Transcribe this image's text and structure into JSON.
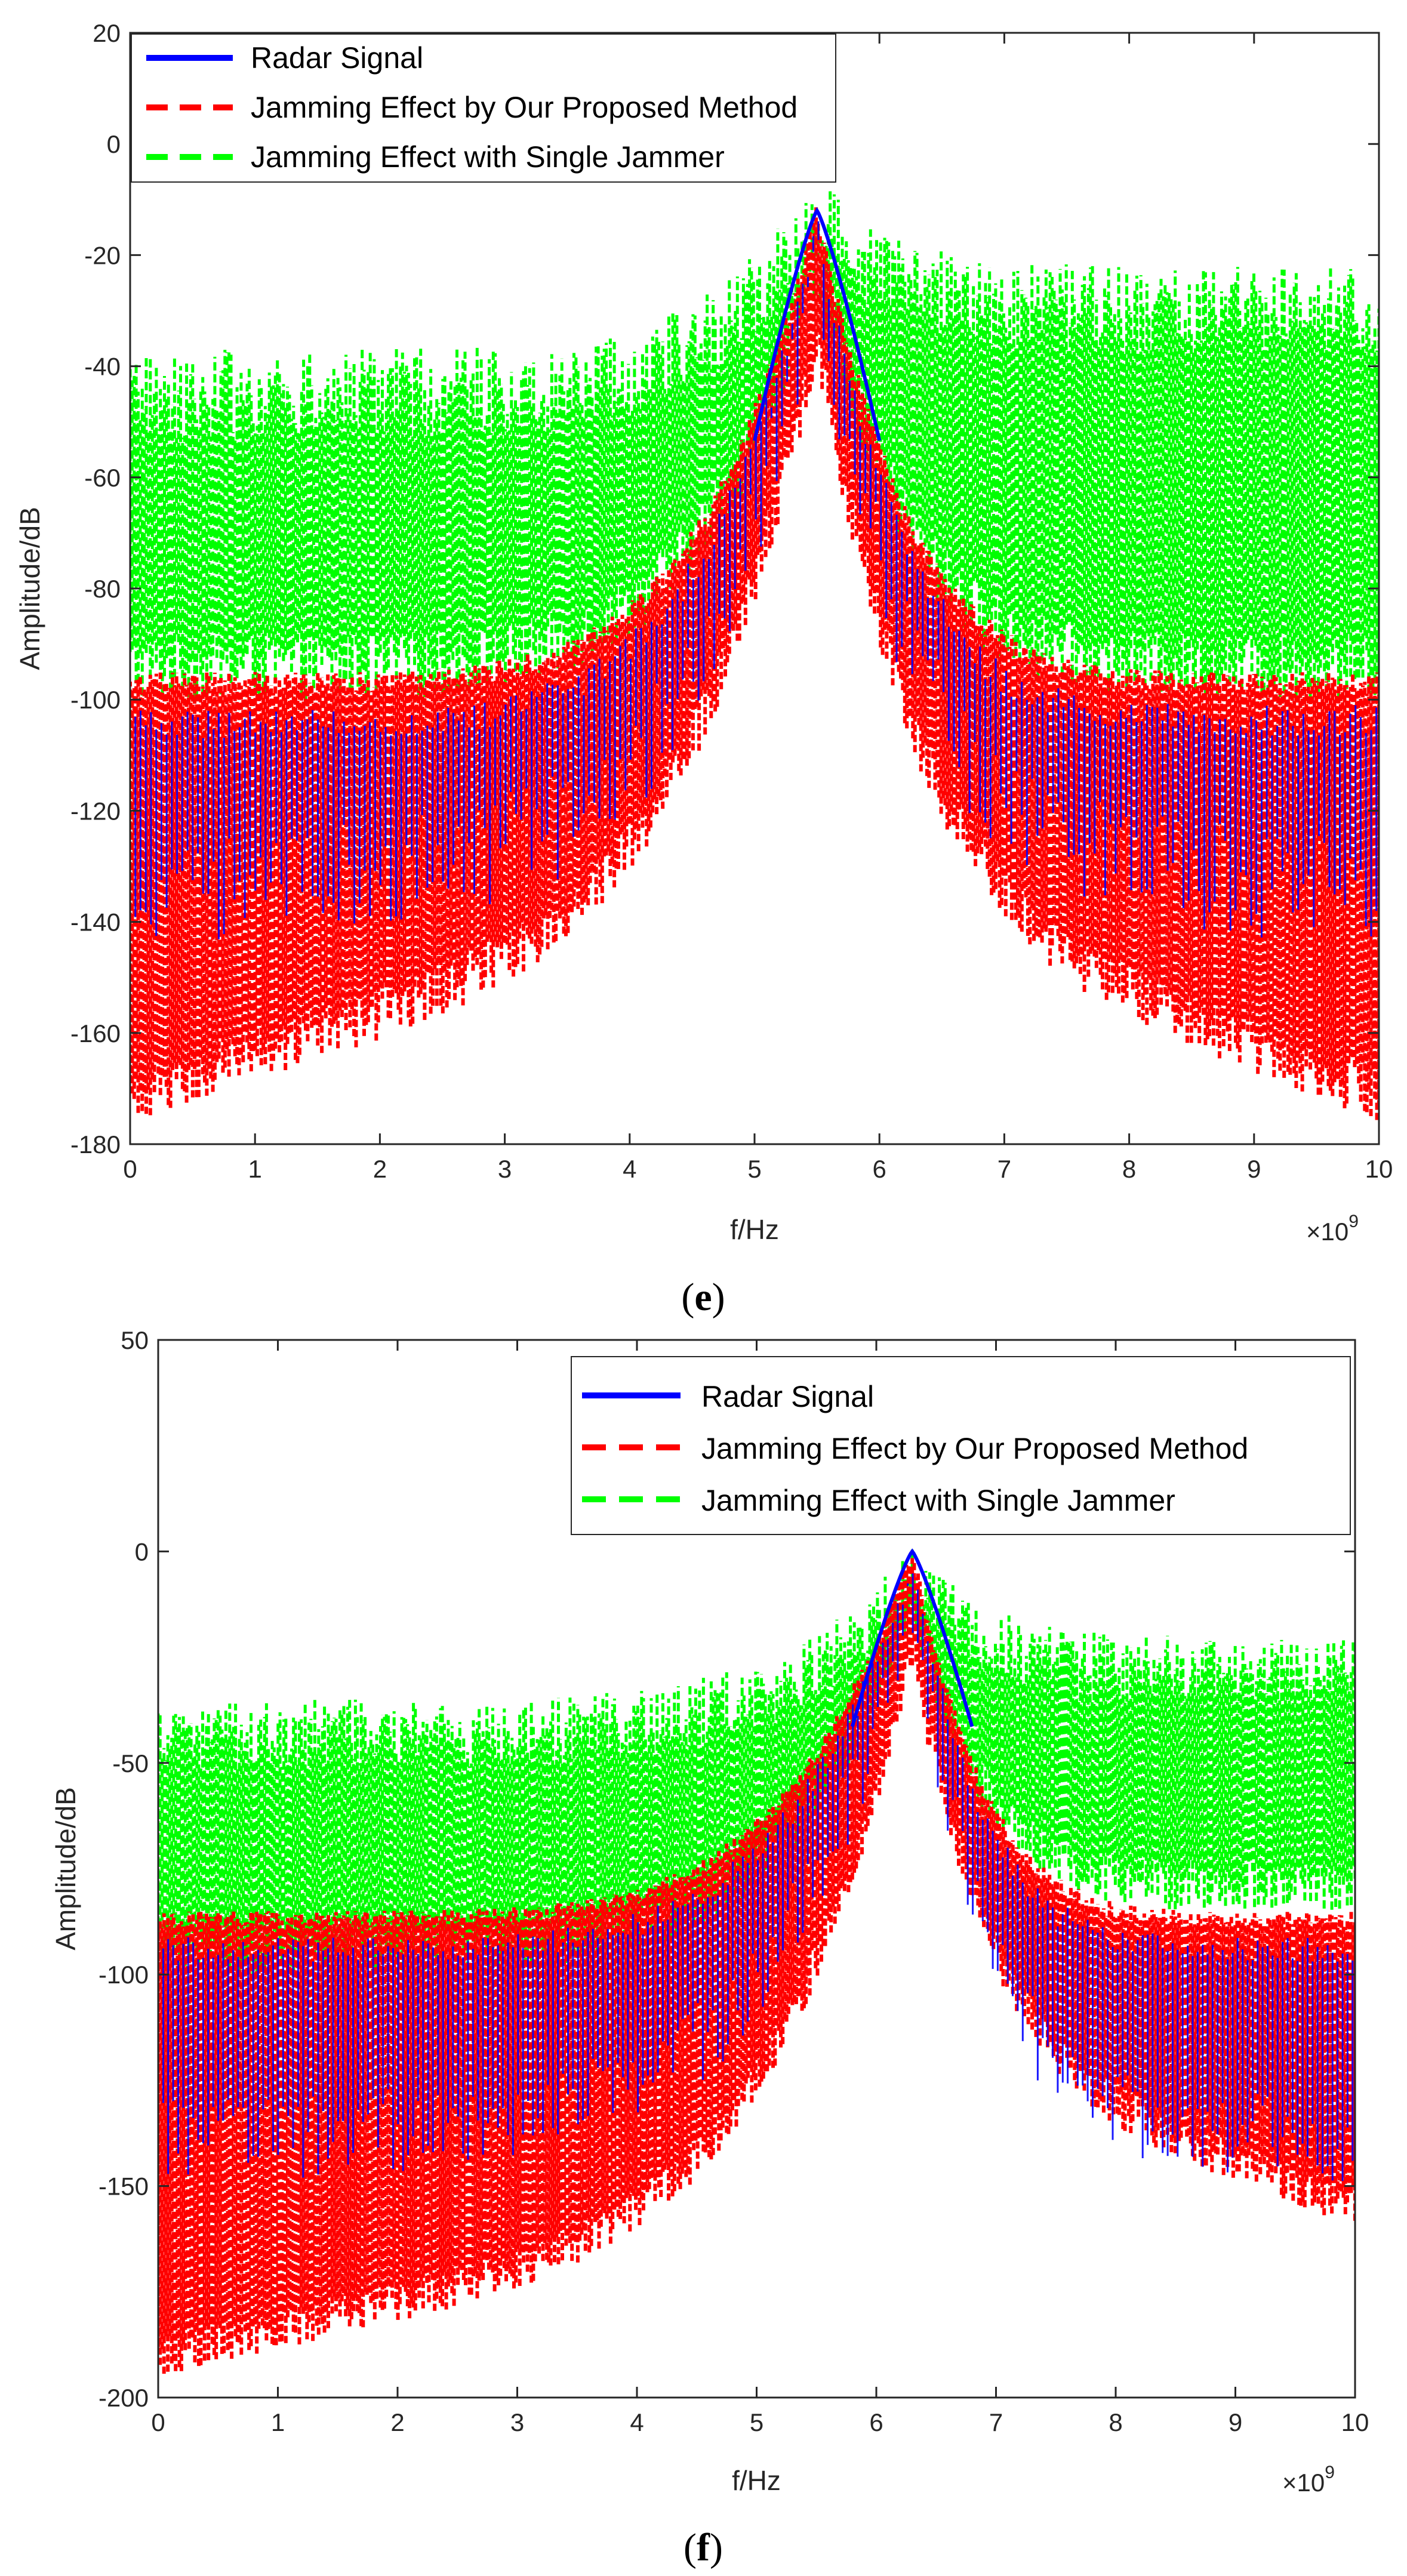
{
  "chart_data": [
    {
      "type": "line",
      "caption_open": "(",
      "caption_letter": "e",
      "caption_close": ")",
      "xlabel": "f/Hz",
      "ylabel": "Amplitude/dB",
      "x_exponent_label": "×10",
      "x_exponent_power": "9",
      "xlim": [
        0,
        10
      ],
      "ylim": [
        -180,
        20
      ],
      "xticks": [
        0,
        1,
        2,
        3,
        4,
        5,
        6,
        7,
        8,
        9,
        10
      ],
      "yticks": [
        20,
        0,
        -20,
        -40,
        -60,
        -80,
        -100,
        -120,
        -140,
        -160,
        -180
      ],
      "xtick_labels": [
        "0",
        "1",
        "2",
        "3",
        "4",
        "5",
        "6",
        "7",
        "8",
        "9",
        "10"
      ],
      "ytick_labels": [
        "20",
        "0",
        "-20",
        "-40",
        "-60",
        "-80",
        "-100",
        "-120",
        "-140",
        "-160",
        "-180"
      ],
      "legend_position": "top-left",
      "peak_x": 5.5,
      "series": [
        {
          "name": "Radar Signal",
          "color": "#0000ff",
          "style": "solid",
          "description_values": {
            "peak_db": -12,
            "floor_left_db": -145,
            "floor_right_db": -145
          }
        },
        {
          "name": "Jamming Effect by Our Proposed Method",
          "color": "#ff0000",
          "style": "dashed",
          "description_values": {
            "peak_db": -10,
            "upper_left_db": -95,
            "lower_left_db": -176,
            "upper_right_db": -95,
            "lower_right_db": -176
          }
        },
        {
          "name": "Jamming Effect with Single Jammer",
          "color": "#00ff00",
          "style": "dashed",
          "description_values": {
            "peak_db": -6,
            "band_left_db": [
              -100,
              -37
            ],
            "band_right_db": [
              -100,
              -22
            ]
          }
        }
      ]
    },
    {
      "type": "line",
      "caption_open": "(",
      "caption_letter": "f",
      "caption_close": ")",
      "xlabel": "f/Hz",
      "ylabel": "Amplitude/dB",
      "x_exponent_label": "×10",
      "x_exponent_power": "9",
      "xlim": [
        0,
        10
      ],
      "ylim": [
        -200,
        50
      ],
      "xticks": [
        0,
        1,
        2,
        3,
        4,
        5,
        6,
        7,
        8,
        9,
        10
      ],
      "yticks": [
        50,
        0,
        -50,
        -100,
        -150,
        -200
      ],
      "xtick_labels": [
        "0",
        "1",
        "2",
        "3",
        "4",
        "5",
        "6",
        "7",
        "8",
        "9",
        "10"
      ],
      "ytick_labels": [
        "50",
        "0",
        "-50",
        "-100",
        "-150",
        "-200"
      ],
      "legend_position": "top-right",
      "peak_x": 6.3,
      "series": [
        {
          "name": "Radar Signal",
          "color": "#0000ff",
          "style": "solid",
          "description_values": {
            "peak_db": 0,
            "floor_left_db": -150,
            "floor_right_db": -150
          }
        },
        {
          "name": "Jamming Effect by Our Proposed Method",
          "color": "#ff0000",
          "style": "dashed",
          "description_values": {
            "peak_db": 2,
            "upper_left_db": -85,
            "lower_left_db": -195,
            "upper_right_db": -85,
            "lower_right_db": -160
          }
        },
        {
          "name": "Jamming Effect with Single Jammer",
          "color": "#00ff00",
          "style": "dashed",
          "description_values": {
            "peak_db": 2,
            "band_left_db": [
              -100,
              -35
            ],
            "band_right_db": [
              -85,
              -20
            ]
          }
        }
      ]
    }
  ]
}
